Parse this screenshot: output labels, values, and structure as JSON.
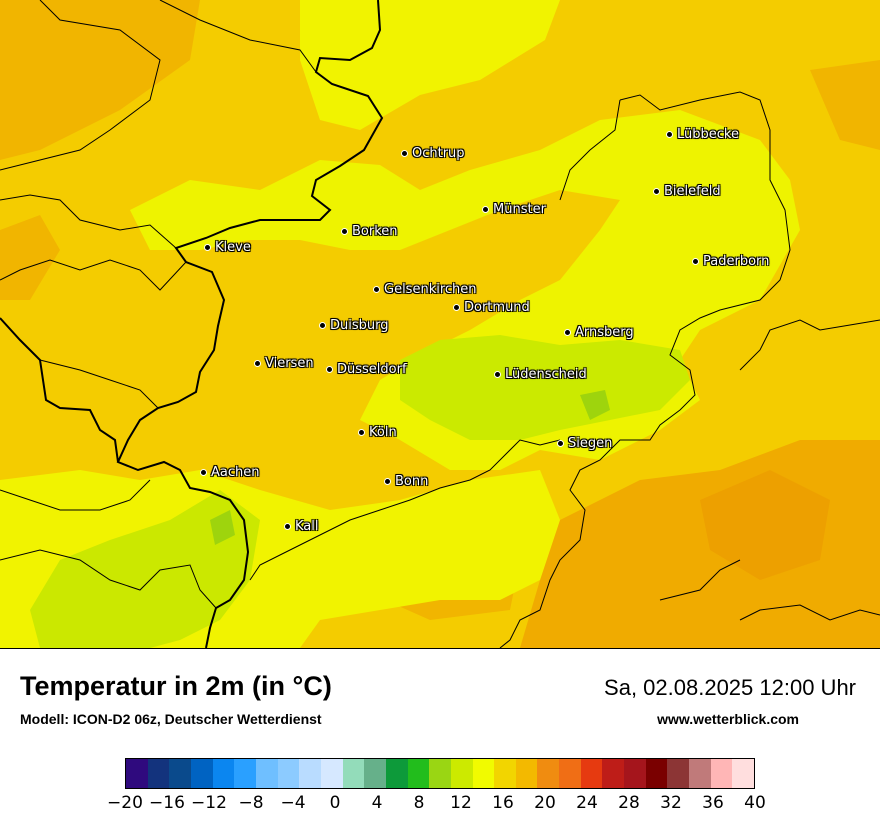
{
  "title": "Temperatur in 2m (in °C)",
  "model": "Modell: ICON-D2 06z, Deutscher Wetterdienst",
  "datetime": "Sa, 02.08.2025 12:00 Uhr",
  "website": "www.wetterblick.com",
  "cities": [
    {
      "name": "Lübbecke"
    },
    {
      "name": "Ochtrup"
    },
    {
      "name": "Bielefeld"
    },
    {
      "name": "Münster"
    },
    {
      "name": "Borken"
    },
    {
      "name": "Kleve"
    },
    {
      "name": "Paderborn"
    },
    {
      "name": "Gelsenkirchen"
    },
    {
      "name": "Dortmund"
    },
    {
      "name": "Duisburg"
    },
    {
      "name": "Arnsberg"
    },
    {
      "name": "Viersen"
    },
    {
      "name": "Düsseldorf"
    },
    {
      "name": "Lüdenscheid"
    },
    {
      "name": "Köln"
    },
    {
      "name": "Siegen"
    },
    {
      "name": "Aachen"
    },
    {
      "name": "Bonn"
    },
    {
      "name": "Kall"
    }
  ],
  "legend": {
    "ticks": [
      "−20",
      "−16",
      "−12",
      "−8",
      "−4",
      "0",
      "4",
      "8",
      "12",
      "16",
      "20",
      "24",
      "28",
      "32",
      "36",
      "40"
    ],
    "colors": [
      "#2f0a7e",
      "#13337d",
      "#0a4a8c",
      "#0063c2",
      "#0b86f0",
      "#2aa0ff",
      "#6fbfff",
      "#8ccbff",
      "#b9dcff",
      "#d6e8ff",
      "#93dcba",
      "#66b08a",
      "#0d9a3a",
      "#22bd1c",
      "#9ad613",
      "#ccea00",
      "#f1fb00",
      "#f2d500",
      "#f3b900",
      "#f08c10",
      "#f06e15",
      "#e63a10",
      "#be1d18",
      "#a5151c",
      "#7a0000",
      "#8c3535",
      "#c07a7a",
      "#ffb6b6",
      "#ffdede"
    ]
  }
}
